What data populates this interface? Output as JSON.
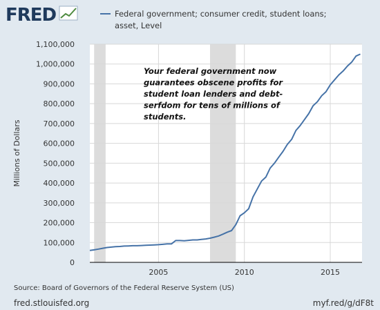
{
  "logo": {
    "text": "FRED",
    "icon": "trend-line-icon"
  },
  "legend": {
    "line1": "Federal government; consumer credit, student loans;",
    "line2": "asset, Level",
    "color": "#4572a7"
  },
  "annotation": [
    "Your federal government now",
    "guarantees obscene profits for",
    "student loan lenders and debt-",
    "serfdom for tens of millions of",
    "students."
  ],
  "source": "Source: Board of Governors of the Federal Reserve System (US)",
  "footer": {
    "left": "fred.stlouisfed.org",
    "right": "myf.red/g/dF8t"
  },
  "chart_data": {
    "type": "line",
    "ylabel": "Millions of Dollars",
    "ylim": [
      0,
      1100000
    ],
    "xlim": [
      2001.0,
      2016.85
    ],
    "yticks": [
      0,
      100000,
      200000,
      300000,
      400000,
      500000,
      600000,
      700000,
      800000,
      900000,
      1000000,
      1100000
    ],
    "ytick_labels": [
      "0",
      "100,000",
      "200,000",
      "300,000",
      "400,000",
      "500,000",
      "600,000",
      "700,000",
      "800,000",
      "900,000",
      "1,000,000",
      "1,100,000"
    ],
    "xticks": [
      2005,
      2010,
      2015
    ],
    "xtick_labels": [
      "2005",
      "2010",
      "2015"
    ],
    "grid": true,
    "recessions": [
      [
        2001.25,
        2001.92
      ],
      [
        2008.0,
        2009.5
      ]
    ],
    "recession_color": "#dcdcdc",
    "series": [
      {
        "name": "Federal government; consumer credit, student loans; asset, Level",
        "color": "#4572a7",
        "x": [
          2001.0,
          2001.25,
          2001.5,
          2001.75,
          2002.0,
          2002.25,
          2002.5,
          2002.75,
          2003.0,
          2003.25,
          2003.5,
          2003.75,
          2004.0,
          2004.25,
          2004.5,
          2004.75,
          2005.0,
          2005.25,
          2005.5,
          2005.75,
          2006.0,
          2006.25,
          2006.5,
          2006.75,
          2007.0,
          2007.25,
          2007.5,
          2007.75,
          2008.0,
          2008.25,
          2008.5,
          2008.75,
          2009.0,
          2009.25,
          2009.5,
          2009.75,
          2010.0,
          2010.25,
          2010.5,
          2010.75,
          2011.0,
          2011.25,
          2011.5,
          2011.75,
          2012.0,
          2012.25,
          2012.5,
          2012.75,
          2013.0,
          2013.25,
          2013.5,
          2013.75,
          2014.0,
          2014.25,
          2014.5,
          2014.75,
          2015.0,
          2015.25,
          2015.5,
          2015.75,
          2016.0,
          2016.25,
          2016.5,
          2016.75
        ],
        "values": [
          60000,
          63000,
          67000,
          71000,
          75000,
          77000,
          79000,
          80000,
          82000,
          83000,
          84000,
          84000,
          85000,
          86000,
          87000,
          88000,
          89000,
          91000,
          93000,
          93000,
          110000,
          110000,
          109000,
          111000,
          113000,
          113000,
          116000,
          118000,
          122000,
          127000,
          133000,
          142000,
          152000,
          160000,
          190000,
          235000,
          250000,
          270000,
          330000,
          370000,
          410000,
          430000,
          475000,
          500000,
          530000,
          560000,
          595000,
          620000,
          665000,
          690000,
          720000,
          750000,
          790000,
          810000,
          840000,
          860000,
          895000,
          920000,
          945000,
          965000,
          990000,
          1010000,
          1040000,
          1050000
        ]
      }
    ]
  }
}
